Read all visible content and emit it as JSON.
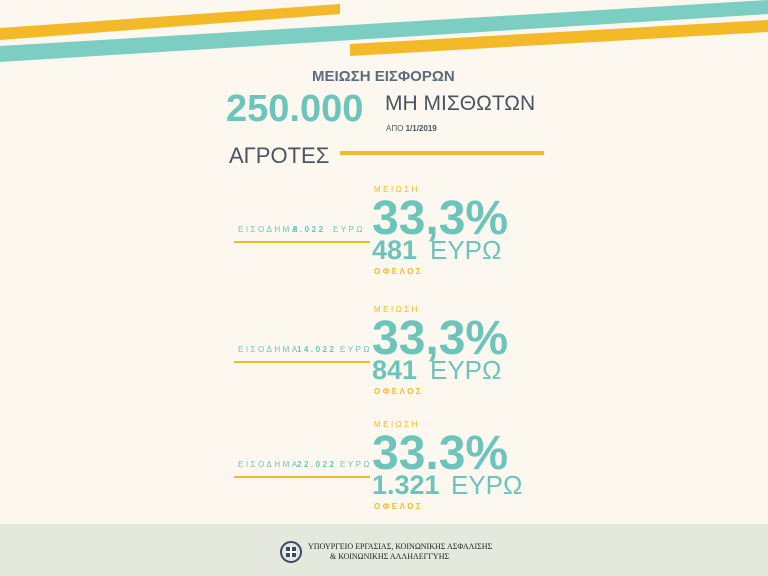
{
  "header": {
    "title": "ΜΕΙΩΣΗ ΕΙΣΦΟΡΩΝ",
    "number": "250.000",
    "label": "ΜΗ ΜΙΣΘΩΤΩΝ",
    "date_prefix": "ΑΠΟ",
    "date": "1/1/2019"
  },
  "section": "ΑΓΡΟΤΕΣ",
  "rows": [
    {
      "income_label": "ΕΙΣΟΔΗΜΑ",
      "income": "8.022",
      "income_unit": "ΕΥΡΩ",
      "reduction_label": "ΜΕΙΩΣΗ",
      "reduction": "33,3%",
      "benefit": "481",
      "benefit_unit": "ΕΥΡΩ",
      "benefit_label": "ΟΦΕΛΟΣ"
    },
    {
      "income_label": "ΕΙΣΟΔΗΜΑ",
      "income": "14.022",
      "income_unit": "ΕΥΡΩ",
      "reduction_label": "ΜΕΙΩΣΗ",
      "reduction": "33,3%",
      "benefit": "841",
      "benefit_unit": "ΕΥΡΩ",
      "benefit_label": "ΟΦΕΛΟΣ"
    },
    {
      "income_label": "ΕΙΣΟΔΗΜΑ",
      "income": "22.022",
      "income_unit": "ΕΥΡΩ",
      "reduction_label": "ΜΕΙΩΣΗ",
      "reduction": "33.3%",
      "benefit": "1.321",
      "benefit_unit": "ΕΥΡΩ",
      "benefit_label": "ΟΦΕΛΟΣ"
    }
  ],
  "footer": {
    "line1": "ΥΠΟΥΡΓΕΙΟ ΕΡΓΑΣΙΑΣ, ΚΟΙΝΩΝΙΚΗΣ ΑΣΦΑΛΙΣΗΣ",
    "line2": "& ΚΟΙΝΩΝΙΚΗΣ ΑΛΛΗΛΕΓΓΥΗΣ"
  }
}
